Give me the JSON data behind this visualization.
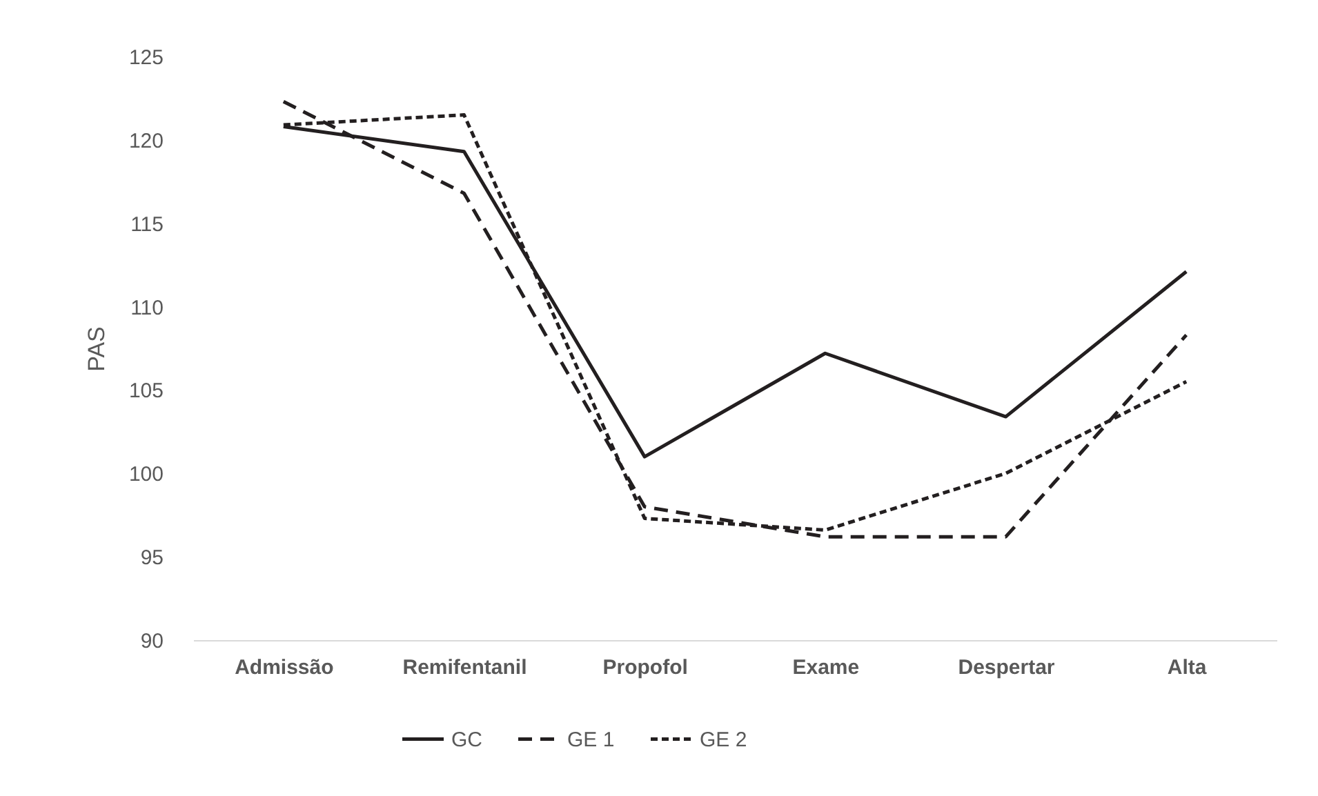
{
  "chart_data": {
    "type": "line",
    "ylabel": "PAS",
    "categories": [
      "Admissão",
      "Remifentanil",
      "Propofol",
      "Exame",
      "Despertar",
      "Alta"
    ],
    "series": [
      {
        "name": "GC",
        "color": "#231f20",
        "line_style": "solid",
        "values": [
          120.8,
          119.3,
          101.0,
          107.2,
          103.4,
          112.1
        ]
      },
      {
        "name": "GE 1",
        "color": "#231f20",
        "line_style": "dashed",
        "values": [
          122.3,
          116.8,
          98.0,
          96.2,
          96.2,
          108.3
        ]
      },
      {
        "name": "GE 2",
        "color": "#231f20",
        "line_style": "dotted",
        "values": [
          120.9,
          121.5,
          97.3,
          96.6,
          100.0,
          105.5
        ]
      }
    ],
    "ylim": [
      90,
      125
    ],
    "yticks": [
      90,
      95,
      100,
      105,
      110,
      115,
      120,
      125
    ],
    "grid": false,
    "legend": "bottom",
    "marker": "none"
  }
}
